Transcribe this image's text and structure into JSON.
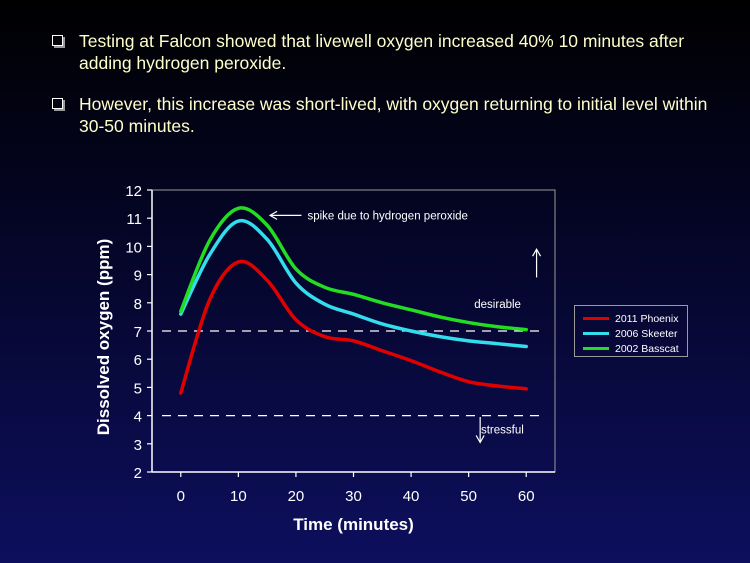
{
  "bullets": [
    "Testing at Falcon showed that livewell oxygen increased 40% 10 minutes after adding hydrogen peroxide.",
    "However, this increase was short-lived, with oxygen returning to initial level within 30-50 minutes."
  ],
  "colors": {
    "background": "#000022",
    "bullet_text": "#ffffcc",
    "axis": "#ffffff"
  },
  "chart_data": {
    "type": "line",
    "xlabel": "Time (minutes)",
    "ylabel": "Dissolved oxygen (ppm)",
    "xlim": [
      -5,
      65
    ],
    "ylim": [
      2,
      12
    ],
    "xticks": [
      0,
      10,
      20,
      30,
      40,
      50,
      60
    ],
    "yticks": [
      2,
      3,
      4,
      5,
      6,
      7,
      8,
      9,
      10,
      11,
      12
    ],
    "grid": false,
    "legend_position": "right",
    "series": [
      {
        "name": "2011 Phoenix",
        "color": "#e00000",
        "x": [
          0,
          5,
          10,
          15,
          20,
          25,
          30,
          35,
          40,
          45,
          50,
          55,
          60
        ],
        "y": [
          4.8,
          8.1,
          9.45,
          8.8,
          7.4,
          6.8,
          6.65,
          6.3,
          5.95,
          5.55,
          5.2,
          5.05,
          4.95
        ]
      },
      {
        "name": "2006 Skeeter",
        "color": "#33ddee",
        "x": [
          0,
          5,
          10,
          15,
          20,
          25,
          30,
          35,
          40,
          45,
          50,
          55,
          60
        ],
        "y": [
          7.6,
          9.7,
          10.9,
          10.25,
          8.7,
          7.95,
          7.6,
          7.25,
          7.0,
          6.8,
          6.65,
          6.55,
          6.45
        ]
      },
      {
        "name": "2002 Basscat",
        "color": "#22dd22",
        "x": [
          0,
          5,
          10,
          15,
          20,
          25,
          30,
          35,
          40,
          45,
          50,
          55,
          60
        ],
        "y": [
          7.7,
          10.2,
          11.35,
          10.75,
          9.2,
          8.55,
          8.3,
          8.0,
          7.75,
          7.5,
          7.3,
          7.15,
          7.05
        ]
      }
    ],
    "reference_lines": [
      {
        "y": 7,
        "style": "dashed",
        "color": "#ffffff"
      },
      {
        "y": 4,
        "style": "dashed",
        "color": "#ffffff"
      }
    ],
    "annotations": [
      {
        "text": "spike due to hydrogen peroxide",
        "x": 22,
        "y": 11.1
      },
      {
        "text": "desirable",
        "x": 57,
        "y": 7.95
      },
      {
        "text": "stressful",
        "x": 57.5,
        "y": 3.5
      }
    ]
  }
}
